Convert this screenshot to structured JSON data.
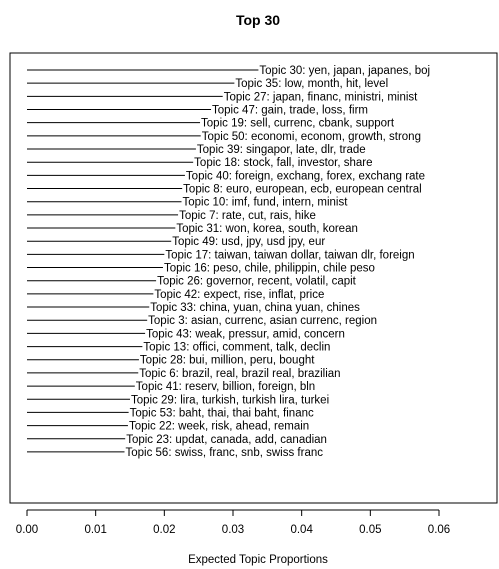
{
  "chart_data": {
    "type": "bar",
    "orientation": "horizontal",
    "title": "Top 30",
    "xlabel": "Expected Topic Proportions",
    "ylabel": "",
    "xlim": [
      0,
      0.068
    ],
    "xticks": [
      0.0,
      0.01,
      0.02,
      0.03,
      0.04,
      0.05,
      0.06
    ],
    "xtick_labels": [
      "0.00",
      "0.01",
      "0.02",
      "0.03",
      "0.04",
      "0.05",
      "0.06"
    ],
    "grid": false,
    "categories": [
      "Topic 30: yen, japan, japanes, boj",
      "Topic 35: low, month, hit, level",
      "Topic 27: japan, financ, ministri, minist",
      "Topic 47: gain, trade, loss, firm",
      "Topic 19: sell, currenc, cbank, support",
      "Topic 50: economi, econom, growth, strong",
      "Topic 39: singapor, late, dlr, trade",
      "Topic 18: stock, fall, investor, share",
      "Topic 40: foreign, exchang, forex, exchang rate",
      "Topic 8: euro, european, ecb, european central",
      "Topic 10: imf, fund, intern, minist",
      "Topic 7: rate, cut, rais, hike",
      "Topic 31: won, korea, south, korean",
      "Topic 49: usd, jpy, usd jpy, eur",
      "Topic 17: taiwan, taiwan dollar, taiwan dlr, foreign",
      "Topic 16: peso, chile, philippin, chile peso",
      "Topic 26: governor, recent, volatil, capit",
      "Topic 42: expect, rise, inflat, price",
      "Topic 33: china, yuan, china yuan, chines",
      "Topic 3: asian, currenc, asian currenc, region",
      "Topic 43: weak, pressur, amid, concern",
      "Topic 13: offici, comment, talk, declin",
      "Topic 28: bui, million, peru, bought",
      "Topic 6: brazil, real, brazil real, brazilian",
      "Topic 41: reserv, billion, foreign, bln",
      "Topic 29: lira, turkish, turkish lira, turkei",
      "Topic 53: baht, thai, thai baht, financ",
      "Topic 22: week, risk, ahead, remain",
      "Topic 23: updat, canada, add, canadian",
      "Topic 56: swiss, franc, snb, swiss franc"
    ],
    "values": [
      0.0337,
      0.0302,
      0.0285,
      0.0268,
      0.0252,
      0.0253,
      0.0246,
      0.0242,
      0.023,
      0.0226,
      0.0225,
      0.022,
      0.0216,
      0.021,
      0.02,
      0.0198,
      0.0188,
      0.0184,
      0.0178,
      0.0175,
      0.0172,
      0.0168,
      0.0163,
      0.0162,
      0.0157,
      0.015,
      0.0148,
      0.0147,
      0.0143,
      0.0142
    ]
  }
}
